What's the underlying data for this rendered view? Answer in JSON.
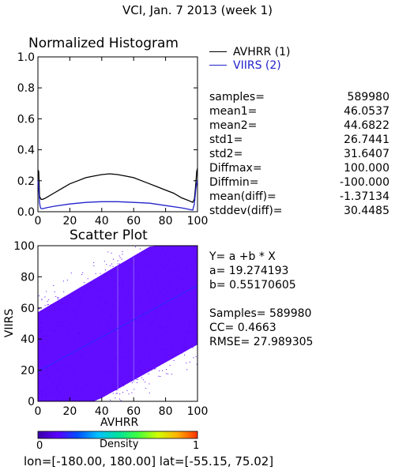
{
  "page_title": "VCI,  Jan. 7 2013 (week 1)",
  "histogram": {
    "title": "Normalized Histogram",
    "legend": [
      {
        "label": "AVHRR (1)",
        "color": "#000000"
      },
      {
        "label": "VIIRS (2)",
        "color": "#2222cc"
      }
    ]
  },
  "stats": [
    {
      "label": "samples=",
      "value": "589980"
    },
    {
      "label": "mean1=",
      "value": "46.0537"
    },
    {
      "label": "mean2=",
      "value": "44.6822"
    },
    {
      "label": "std1=",
      "value": "26.7441"
    },
    {
      "label": "std2=",
      "value": "31.6407"
    },
    {
      "label": "Diffmax=",
      "value": "100.000"
    },
    {
      "label": "Diffmin=",
      "value": "-100.000"
    },
    {
      "label": "mean(diff)=",
      "value": "-1.37134"
    },
    {
      "label": "stddev(diff)=",
      "value": "30.4485"
    }
  ],
  "scatter": {
    "title": "Scatter Plot",
    "xlabel": "AVHRR",
    "ylabel": "VIIRS"
  },
  "regression": {
    "equation": "Y= a +b * X",
    "a": "a= 19.274193",
    "b": "b= 0.55170605",
    "samples": "Samples= 589980",
    "cc": "CC=  0.4663",
    "rmse": "RMSE= 27.989305"
  },
  "colorbar": {
    "label": "Density",
    "min_label": "0",
    "max_label": "1",
    "colors": [
      "#3b00a8",
      "#5a00ff",
      "#0050ff",
      "#00c0ff",
      "#00e0a0",
      "#40ff40",
      "#d0ff00",
      "#ffb000",
      "#ff3000"
    ]
  },
  "footer": "lon=[-180.00, 180.00] lat=[-55.15, 75.02]",
  "chart_data": [
    {
      "type": "line",
      "xlim": [
        0,
        100
      ],
      "ylim": [
        0,
        1.0
      ],
      "x_ticks": [
        "0",
        "20",
        "40",
        "60",
        "80",
        "100"
      ],
      "y_ticks": [
        "0.0",
        "0.2",
        "0.4",
        "0.6",
        "0.8",
        "1.0"
      ],
      "series": [
        {
          "name": "AVHRR (1)",
          "color": "#000000",
          "x": [
            0,
            0.5,
            1,
            1.5,
            2,
            3,
            5,
            10,
            15,
            20,
            25,
            30,
            35,
            40,
            45,
            50,
            55,
            60,
            65,
            70,
            75,
            80,
            85,
            90,
            95,
            97,
            98,
            98.5,
            99,
            99.5,
            100
          ],
          "y": [
            0.27,
            0.26,
            0.1,
            0.09,
            0.08,
            0.08,
            0.09,
            0.12,
            0.15,
            0.18,
            0.2,
            0.22,
            0.23,
            0.24,
            0.245,
            0.24,
            0.23,
            0.22,
            0.2,
            0.18,
            0.16,
            0.14,
            0.12,
            0.09,
            0.07,
            0.06,
            0.08,
            0.13,
            0.19,
            0.26,
            0.28
          ]
        },
        {
          "name": "VIIRS (2)",
          "color": "#2222cc",
          "x": [
            0,
            0.5,
            1,
            1.5,
            2,
            3,
            5,
            10,
            20,
            30,
            40,
            50,
            60,
            70,
            80,
            90,
            95,
            97,
            98,
            98.5,
            99,
            99.5,
            100
          ],
          "y": [
            0.2,
            0.15,
            0.06,
            0.03,
            0.02,
            0.02,
            0.025,
            0.035,
            0.05,
            0.06,
            0.065,
            0.065,
            0.06,
            0.055,
            0.04,
            0.025,
            0.015,
            0.01,
            0.05,
            0.1,
            0.15,
            0.18,
            0.2
          ]
        }
      ]
    },
    {
      "type": "scatter",
      "xlim": [
        0,
        100
      ],
      "ylim": [
        0,
        100
      ],
      "x_ticks": [
        "0",
        "20",
        "40",
        "60",
        "80",
        "100"
      ],
      "y_ticks": [
        "0",
        "20",
        "40",
        "60",
        "80",
        "100"
      ],
      "regression_line": {
        "intercept": 19.274193,
        "slope": 0.55170605
      },
      "point_color": "#5a00ff",
      "samples": 589980
    }
  ]
}
